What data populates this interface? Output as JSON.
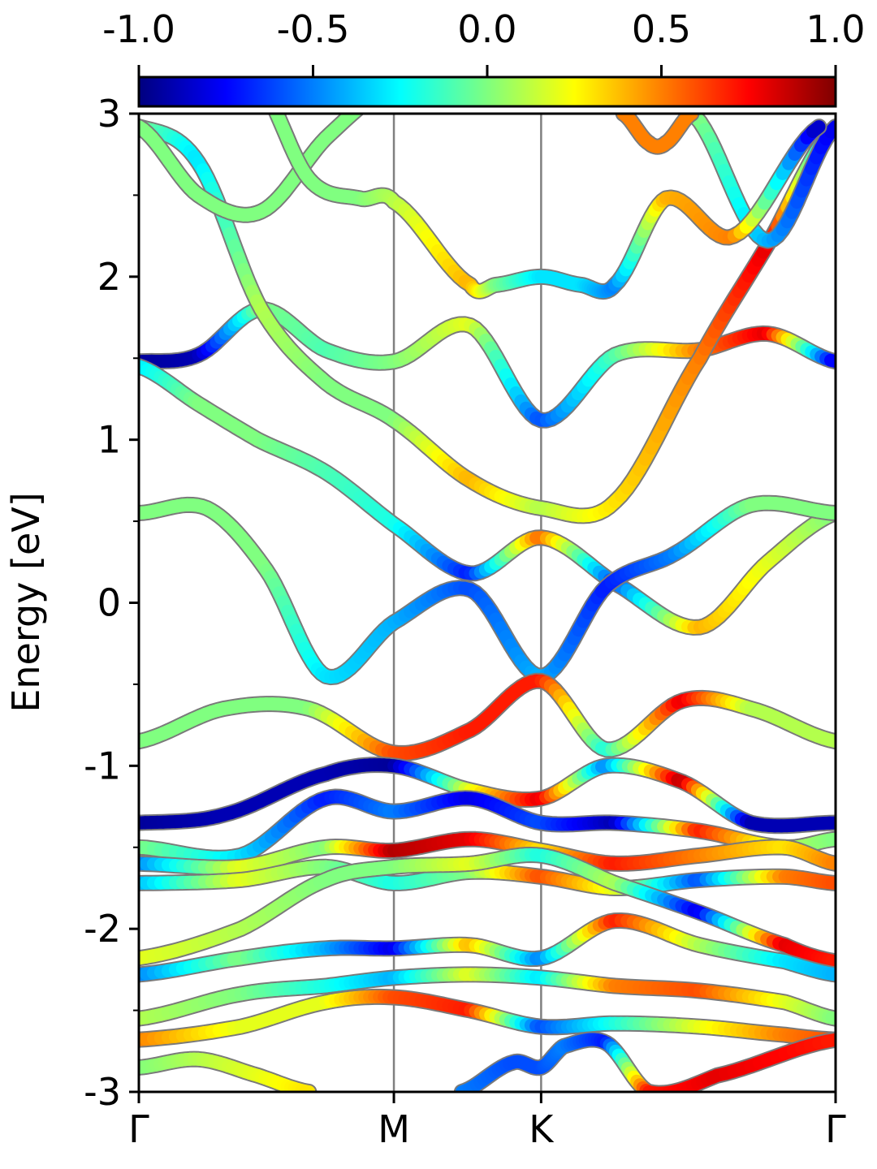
{
  "chart_data": {
    "type": "line",
    "title": "",
    "xlabel": "",
    "ylabel": "Energy [eV]",
    "ylim": [
      -3,
      3
    ],
    "y_ticks": [
      -3,
      -2,
      -1,
      0,
      1,
      2,
      3
    ],
    "y_tick_labels": [
      "-3",
      "-2",
      "-1",
      "0",
      "1",
      "2",
      "3"
    ],
    "y_minor_ticks": [
      -2.5,
      -1.5,
      -0.5,
      0.5,
      1.5,
      2.5
    ],
    "x_ticks": [
      0,
      1.5,
      2.366,
      4.098
    ],
    "x_tick_labels": [
      "Γ",
      "M",
      "K",
      "Γ"
    ],
    "x_range": [
      0,
      4.098
    ],
    "vertical_lines_at": [
      1.5,
      2.366
    ],
    "grid": false,
    "legend": "none",
    "colorbar": {
      "colormap": "jet",
      "range": [
        -1.0,
        1.0
      ],
      "ticks": [
        -1.0,
        -0.5,
        0.0,
        0.5,
        1.0
      ],
      "tick_labels": [
        "-1.0",
        "-0.5",
        "0.0",
        "0.5",
        "1.0"
      ],
      "placement": "top",
      "stops": [
        "#00007f",
        "#0000ff",
        "#007fff",
        "#00ffff",
        "#7fff7f",
        "#ffff00",
        "#ff7f00",
        "#ff0000",
        "#7f0000"
      ]
    },
    "bands": [
      {
        "x": [
          0,
          0.35,
          0.72,
          1.1,
          1.5,
          1.95,
          2.366,
          2.8,
          3.3,
          3.7,
          4.098
        ],
        "y": [
          1.48,
          1.52,
          1.8,
          1.55,
          1.48,
          1.7,
          1.12,
          1.52,
          1.55,
          1.65,
          1.48
        ],
        "c": [
          -0.95,
          -0.9,
          0.0,
          -0.1,
          0.0,
          0.2,
          -0.6,
          -0.1,
          0.5,
          0.8,
          -0.8
        ]
      },
      {
        "x": [
          0,
          0.35,
          0.7,
          1.1,
          1.5,
          1.95,
          2.366,
          2.8,
          3.3,
          3.7,
          4.098
        ],
        "y": [
          1.45,
          1.22,
          1.0,
          0.8,
          0.48,
          0.18,
          0.4,
          0.12,
          -0.15,
          0.25,
          0.55
        ],
        "c": [
          -0.3,
          0.0,
          0.0,
          -0.1,
          -0.2,
          -0.7,
          0.55,
          -0.6,
          0.4,
          0.2,
          0.0
        ]
      },
      {
        "x": [
          0,
          0.4,
          0.75,
          1.1,
          1.5,
          1.95,
          2.366,
          2.75,
          3.15,
          3.6,
          4.098
        ],
        "y": [
          0.55,
          0.58,
          0.2,
          -0.45,
          -0.12,
          0.08,
          -0.45,
          0.1,
          0.3,
          0.6,
          0.55
        ],
        "c": [
          0.0,
          0.0,
          0.0,
          -0.3,
          -0.4,
          -0.6,
          -0.4,
          -0.7,
          -0.5,
          0.0,
          0.0
        ]
      },
      {
        "x": [
          0,
          0.5,
          1.0,
          1.5,
          1.95,
          2.366,
          2.75,
          3.2,
          3.6,
          4.098
        ],
        "y": [
          -0.85,
          -0.65,
          -0.65,
          -0.92,
          -0.78,
          -0.48,
          -0.9,
          -0.6,
          -0.65,
          -0.85
        ],
        "c": [
          0.0,
          0.0,
          0.0,
          0.6,
          0.7,
          0.7,
          -0.2,
          0.8,
          0.1,
          0.1
        ]
      },
      {
        "x": [
          0,
          0.5,
          1.1,
          1.5,
          1.95,
          2.366,
          2.75,
          3.2,
          3.6,
          4.098
        ],
        "y": [
          -1.35,
          -1.3,
          -1.05,
          -1.0,
          -1.15,
          -1.2,
          -1.0,
          -1.1,
          -1.35,
          -1.35
        ],
        "c": [
          -0.95,
          -0.9,
          -0.9,
          -0.95,
          0.2,
          0.8,
          -0.5,
          0.9,
          -0.9,
          -0.9
        ]
      },
      {
        "x": [
          0,
          0.6,
          1.1,
          1.5,
          1.95,
          2.366,
          2.8,
          3.3,
          3.8,
          4.098
        ],
        "y": [
          -1.5,
          -1.55,
          -1.2,
          -1.28,
          -1.2,
          -1.35,
          -1.35,
          -1.4,
          -1.5,
          -1.45
        ],
        "c": [
          0.0,
          -0.3,
          -0.7,
          -0.5,
          -0.8,
          -0.6,
          -0.9,
          0.7,
          0.1,
          0.0
        ]
      },
      {
        "x": [
          0,
          0.6,
          1.1,
          1.5,
          1.95,
          2.366,
          2.8,
          3.3,
          3.8,
          4.098
        ],
        "y": [
          -1.6,
          -1.62,
          -1.5,
          -1.52,
          -1.45,
          -1.52,
          -1.6,
          -1.55,
          -1.5,
          -1.6
        ],
        "c": [
          -0.5,
          0.2,
          0.0,
          0.9,
          0.8,
          0.3,
          0.7,
          0.5,
          0.3,
          0.5
        ]
      },
      {
        "x": [
          0,
          0.6,
          1.1,
          1.5,
          1.95,
          2.366,
          2.8,
          3.3,
          3.8,
          4.098
        ],
        "y": [
          -1.72,
          -1.7,
          -1.62,
          -1.72,
          -1.65,
          -1.68,
          -1.75,
          -1.7,
          -1.68,
          -1.72
        ],
        "c": [
          -0.4,
          0.2,
          0.0,
          -0.2,
          0.0,
          0.6,
          0.2,
          -0.6,
          0.5,
          0.6
        ]
      },
      {
        "x": [
          0,
          0.6,
          1.1,
          1.5,
          1.95,
          2.366,
          2.8,
          3.3,
          3.8,
          4.098
        ],
        "y": [
          -2.18,
          -2.0,
          -1.7,
          -1.62,
          -1.6,
          -1.55,
          -1.72,
          -1.9,
          -2.1,
          -2.2
        ],
        "c": [
          0.2,
          0.1,
          0.0,
          0.0,
          0.2,
          -0.2,
          0.1,
          -0.8,
          0.8,
          0.7
        ]
      },
      {
        "x": [
          0,
          0.6,
          1.1,
          1.5,
          1.95,
          2.366,
          2.8,
          3.3,
          3.8,
          4.098
        ],
        "y": [
          -2.28,
          -2.18,
          -2.12,
          -2.12,
          -2.1,
          -2.18,
          -1.95,
          -2.1,
          -2.2,
          -2.28
        ],
        "c": [
          -0.5,
          0.0,
          -0.4,
          -0.8,
          0.4,
          -0.5,
          0.7,
          0.1,
          -0.3,
          -0.4
        ]
      },
      {
        "x": [
          0,
          0.6,
          1.1,
          1.5,
          1.95,
          2.366,
          2.8,
          3.3,
          3.8,
          4.098
        ],
        "y": [
          -2.55,
          -2.4,
          -2.35,
          -2.3,
          -2.28,
          -2.3,
          -2.35,
          -2.38,
          -2.45,
          -2.55
        ],
        "c": [
          0.1,
          0.0,
          -0.2,
          -0.4,
          0.2,
          -0.3,
          0.5,
          0.6,
          0.2,
          0.0
        ]
      },
      {
        "x": [
          0,
          0.6,
          1.1,
          1.5,
          1.95,
          2.366,
          2.8,
          3.3,
          3.8,
          4.098
        ],
        "y": [
          -2.68,
          -2.6,
          -2.45,
          -2.42,
          -2.5,
          -2.6,
          -2.58,
          -2.6,
          -2.65,
          -2.68
        ],
        "c": [
          0.5,
          0.2,
          0.2,
          0.6,
          0.7,
          -0.6,
          -0.2,
          0.2,
          0.5,
          0.6
        ]
      },
      {
        "x": [
          0,
          0.35,
          0.7,
          1.0
        ],
        "y": [
          -2.85,
          -2.8,
          -2.9,
          -3.0
        ],
        "c": [
          0.0,
          0.1,
          0.2,
          0.3
        ]
      },
      {
        "x": [
          1.9,
          2.2,
          2.366,
          2.5,
          2.75,
          3.0,
          3.4,
          4.098
        ],
        "y": [
          -3.0,
          -2.82,
          -2.85,
          -2.72,
          -2.7,
          -3.0,
          -2.9,
          -2.68
        ],
        "c": [
          -0.5,
          -0.6,
          -0.6,
          -0.5,
          -0.7,
          0.7,
          0.8,
          0.7
        ]
      },
      {
        "x": [
          0,
          0.35,
          0.72,
          1.1,
          1.5,
          1.95,
          2.366,
          2.8,
          3.3,
          3.7,
          4.098
        ],
        "y": [
          2.92,
          2.7,
          1.8,
          1.35,
          1.12,
          0.75,
          0.58,
          0.62,
          1.5,
          2.2,
          2.92
        ],
        "c": [
          0.0,
          -0.3,
          0.1,
          0.0,
          0.0,
          0.4,
          0.1,
          0.3,
          0.5,
          0.8,
          -0.5
        ]
      },
      {
        "x": [
          0,
          0.35,
          0.72,
          1.1,
          1.5,
          1.95,
          2.366,
          2.8,
          3.3,
          3.7,
          4.098
        ],
        "y": [
          2.92,
          2.5,
          2.4,
          2.85,
          3.2,
          3.4,
          3.4,
          3.4,
          2.95,
          2.22,
          2.92
        ],
        "c": [
          0.0,
          0.0,
          0.0,
          0.0,
          0.0,
          0.0,
          0.0,
          0.0,
          0.0,
          -0.4,
          -0.8
        ]
      },
      {
        "x": [
          0.7,
          1.0,
          1.3,
          1.5,
          1.95,
          2.1,
          2.366,
          2.6,
          2.8,
          3.1,
          3.5,
          4.0
        ],
        "y": [
          3.2,
          2.6,
          2.48,
          2.46,
          1.95,
          1.95,
          2.0,
          1.95,
          1.95,
          2.48,
          2.25,
          2.92
        ],
        "c": [
          0.0,
          0.0,
          0.0,
          0.1,
          0.4,
          0.0,
          -0.3,
          -0.3,
          -0.5,
          0.4,
          0.5,
          -0.9
        ]
      },
      {
        "x": [
          2.85,
          3.0,
          3.1,
          3.25
        ],
        "y": [
          3.0,
          2.82,
          2.82,
          3.0
        ],
        "c": [
          0.5,
          0.5,
          0.5,
          0.5
        ]
      }
    ]
  }
}
